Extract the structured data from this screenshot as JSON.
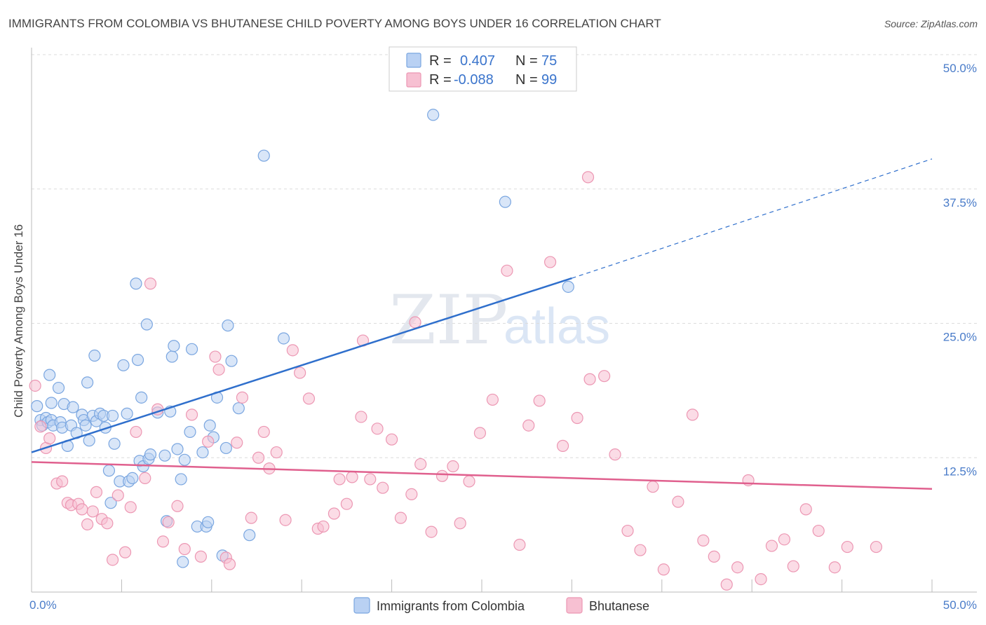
{
  "chart_data": {
    "type": "scatter",
    "title": "IMMIGRANTS FROM COLOMBIA VS BHUTANESE CHILD POVERTY AMONG BOYS UNDER 16 CORRELATION CHART",
    "source": "Source: ZipAtlas.com",
    "ylabel": "Child Poverty Among Boys Under 16",
    "xlabel": "",
    "xlim": [
      0,
      50
    ],
    "ylim": [
      0,
      50
    ],
    "x_tick_labels": [
      "0.0%",
      "50.0%"
    ],
    "y_ticks": [
      {
        "value": 12.5,
        "label": "12.5%"
      },
      {
        "value": 25.0,
        "label": "25.0%"
      },
      {
        "value": 37.5,
        "label": "37.5%"
      },
      {
        "value": 50.0,
        "label": "50.0%"
      }
    ],
    "watermark": {
      "zip": "ZIP",
      "atlas": "atlas"
    },
    "legend": {
      "rows": [
        {
          "r_label": "R = ",
          "r_value": "0.407",
          "n_label": "N = ",
          "n_value": "75"
        },
        {
          "r_label": "R = ",
          "r_value": "-0.088",
          "n_label": "N = ",
          "n_value": "99"
        }
      ]
    },
    "colors": {
      "series1_fill": "#b9d1f3",
      "series1_stroke": "#7aa6e0",
      "series1_line": "#2f6fcc",
      "series2_fill": "#f7c0d2",
      "series2_stroke": "#ec97b3",
      "series2_line": "#e0608e",
      "grid": "#dcdcdc"
    },
    "series": [
      {
        "name": "Immigrants from Colombia",
        "trend": {
          "x0": 0,
          "y0": 13.0,
          "x1": 30.0,
          "y1": 29.2,
          "dash_x1": 50.0,
          "dash_y1": 40.3
        },
        "points": [
          [
            0.3,
            17.3
          ],
          [
            0.5,
            16.0
          ],
          [
            0.6,
            15.5
          ],
          [
            0.8,
            16.2
          ],
          [
            0.9,
            15.8
          ],
          [
            1.0,
            20.2
          ],
          [
            1.1,
            16.0
          ],
          [
            1.1,
            17.6
          ],
          [
            1.2,
            15.5
          ],
          [
            1.5,
            19.0
          ],
          [
            1.6,
            15.8
          ],
          [
            1.7,
            15.3
          ],
          [
            1.8,
            17.5
          ],
          [
            2.0,
            13.6
          ],
          [
            2.2,
            15.5
          ],
          [
            2.3,
            17.2
          ],
          [
            2.5,
            14.8
          ],
          [
            2.8,
            16.5
          ],
          [
            2.9,
            16.0
          ],
          [
            3.0,
            15.5
          ],
          [
            3.1,
            19.5
          ],
          [
            3.2,
            14.1
          ],
          [
            3.4,
            16.4
          ],
          [
            3.5,
            22.0
          ],
          [
            3.6,
            15.9
          ],
          [
            3.8,
            16.6
          ],
          [
            4.0,
            16.4
          ],
          [
            4.1,
            15.3
          ],
          [
            4.3,
            11.3
          ],
          [
            4.4,
            8.3
          ],
          [
            4.5,
            16.4
          ],
          [
            4.6,
            13.8
          ],
          [
            4.9,
            10.3
          ],
          [
            5.1,
            21.1
          ],
          [
            5.3,
            16.6
          ],
          [
            5.4,
            10.3
          ],
          [
            5.6,
            10.6
          ],
          [
            5.8,
            28.7
          ],
          [
            5.9,
            21.6
          ],
          [
            6.0,
            12.2
          ],
          [
            6.1,
            18.1
          ],
          [
            6.2,
            11.7
          ],
          [
            6.4,
            24.9
          ],
          [
            6.5,
            12.4
          ],
          [
            6.6,
            12.8
          ],
          [
            7.0,
            16.7
          ],
          [
            7.4,
            12.7
          ],
          [
            7.5,
            6.6
          ],
          [
            7.7,
            16.8
          ],
          [
            7.8,
            21.9
          ],
          [
            7.9,
            22.9
          ],
          [
            8.1,
            13.3
          ],
          [
            8.3,
            10.5
          ],
          [
            8.4,
            2.8
          ],
          [
            8.5,
            12.3
          ],
          [
            8.8,
            14.9
          ],
          [
            8.9,
            22.6
          ],
          [
            9.2,
            6.1
          ],
          [
            9.5,
            13.0
          ],
          [
            9.7,
            6.1
          ],
          [
            9.8,
            6.5
          ],
          [
            9.9,
            15.5
          ],
          [
            10.1,
            14.4
          ],
          [
            10.3,
            18.1
          ],
          [
            10.6,
            3.4
          ],
          [
            10.8,
            13.4
          ],
          [
            10.9,
            24.8
          ],
          [
            11.1,
            21.5
          ],
          [
            11.5,
            17.1
          ],
          [
            12.1,
            5.3
          ],
          [
            12.9,
            40.6
          ],
          [
            14.0,
            23.6
          ],
          [
            22.3,
            44.4
          ],
          [
            26.3,
            36.3
          ],
          [
            29.8,
            28.4
          ]
        ]
      },
      {
        "name": "Bhutanese",
        "trend": {
          "x0": 0,
          "y0": 12.1,
          "x1": 50.0,
          "y1": 9.6
        },
        "points": [
          [
            0.2,
            19.2
          ],
          [
            0.5,
            15.4
          ],
          [
            0.8,
            13.4
          ],
          [
            1.0,
            14.3
          ],
          [
            1.4,
            10.1
          ],
          [
            1.7,
            10.3
          ],
          [
            2.0,
            8.3
          ],
          [
            2.2,
            8.1
          ],
          [
            2.6,
            8.2
          ],
          [
            2.8,
            7.7
          ],
          [
            3.1,
            6.3
          ],
          [
            3.4,
            7.5
          ],
          [
            3.6,
            9.3
          ],
          [
            3.9,
            6.8
          ],
          [
            4.2,
            6.4
          ],
          [
            4.5,
            3.0
          ],
          [
            4.8,
            9.0
          ],
          [
            5.2,
            3.7
          ],
          [
            5.5,
            7.9
          ],
          [
            5.8,
            14.9
          ],
          [
            6.3,
            10.6
          ],
          [
            6.6,
            28.7
          ],
          [
            7.0,
            17.0
          ],
          [
            7.3,
            4.7
          ],
          [
            7.6,
            6.5
          ],
          [
            8.1,
            8.0
          ],
          [
            8.5,
            4.0
          ],
          [
            8.9,
            16.5
          ],
          [
            9.4,
            3.3
          ],
          [
            9.8,
            14.0
          ],
          [
            10.2,
            21.9
          ],
          [
            10.4,
            20.7
          ],
          [
            10.8,
            3.2
          ],
          [
            11.0,
            2.6
          ],
          [
            11.4,
            13.9
          ],
          [
            11.7,
            18.1
          ],
          [
            12.2,
            6.9
          ],
          [
            12.6,
            12.5
          ],
          [
            12.9,
            14.9
          ],
          [
            13.2,
            11.5
          ],
          [
            13.6,
            13.0
          ],
          [
            14.1,
            6.7
          ],
          [
            14.5,
            22.5
          ],
          [
            14.9,
            20.4
          ],
          [
            15.4,
            18.0
          ],
          [
            15.9,
            5.9
          ],
          [
            16.2,
            6.1
          ],
          [
            16.8,
            7.3
          ],
          [
            17.1,
            10.5
          ],
          [
            17.5,
            8.2
          ],
          [
            17.8,
            10.7
          ],
          [
            18.3,
            16.3
          ],
          [
            18.8,
            10.5
          ],
          [
            19.2,
            15.2
          ],
          [
            19.5,
            9.7
          ],
          [
            20.0,
            14.2
          ],
          [
            20.5,
            6.9
          ],
          [
            21.1,
            9.1
          ],
          [
            21.6,
            11.9
          ],
          [
            22.2,
            5.6
          ],
          [
            22.8,
            10.8
          ],
          [
            23.4,
            11.7
          ],
          [
            23.8,
            6.4
          ],
          [
            24.3,
            10.3
          ],
          [
            24.9,
            14.8
          ],
          [
            25.6,
            17.9
          ],
          [
            26.4,
            29.9
          ],
          [
            27.1,
            4.4
          ],
          [
            27.6,
            15.5
          ],
          [
            28.2,
            17.8
          ],
          [
            28.8,
            30.7
          ],
          [
            29.5,
            13.6
          ],
          [
            30.3,
            16.2
          ],
          [
            31.0,
            19.8
          ],
          [
            31.8,
            20.1
          ],
          [
            32.4,
            12.8
          ],
          [
            33.1,
            5.7
          ],
          [
            33.8,
            3.9
          ],
          [
            34.5,
            9.8
          ],
          [
            35.1,
            2.1
          ],
          [
            35.9,
            8.4
          ],
          [
            36.7,
            16.5
          ],
          [
            37.3,
            4.8
          ],
          [
            37.9,
            3.3
          ],
          [
            38.6,
            0.7
          ],
          [
            39.2,
            2.3
          ],
          [
            39.8,
            10.4
          ],
          [
            40.5,
            1.2
          ],
          [
            41.1,
            4.3
          ],
          [
            41.8,
            4.9
          ],
          [
            42.3,
            2.4
          ],
          [
            43.0,
            7.7
          ],
          [
            43.7,
            5.7
          ],
          [
            44.6,
            2.3
          ],
          [
            45.3,
            4.2
          ],
          [
            46.9,
            4.2
          ],
          [
            30.9,
            38.6
          ],
          [
            21.3,
            25.1
          ],
          [
            18.4,
            23.4
          ]
        ]
      }
    ]
  }
}
